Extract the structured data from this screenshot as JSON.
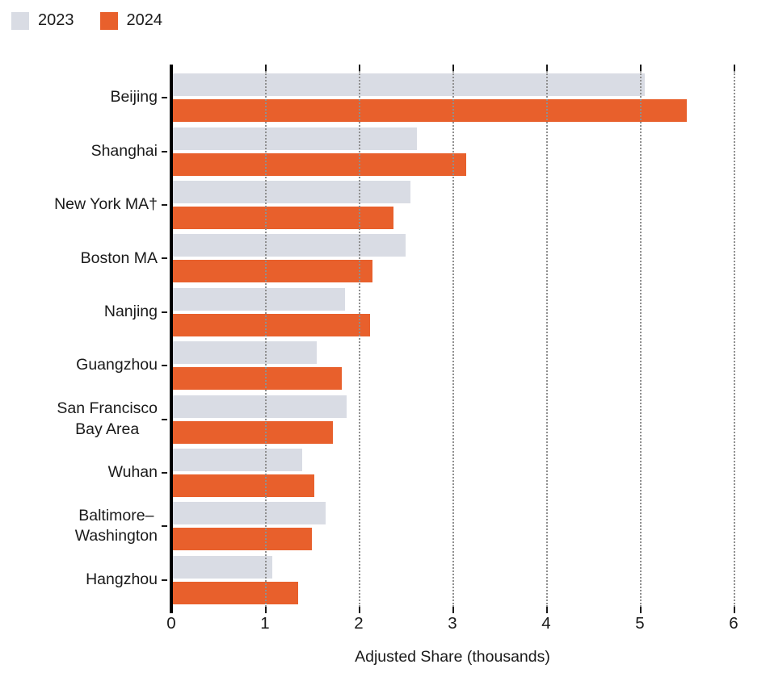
{
  "legend": {
    "items": [
      {
        "label": "2023",
        "color": "#d9dce4"
      },
      {
        "label": "2024",
        "color": "#e8602c"
      }
    ]
  },
  "chart_data": {
    "type": "bar",
    "orientation": "horizontal",
    "title": "",
    "xlabel": "Adjusted Share (thousands)",
    "ylabel": "",
    "xlim": [
      0,
      6
    ],
    "xticks": [
      0,
      1,
      2,
      3,
      4,
      5,
      6
    ],
    "grid": "dotted-vertical",
    "legend_position": "top-left",
    "categories": [
      "Beijing",
      "Shanghai",
      "New York MA†",
      "Boston MA",
      "Nanjing",
      "Guangzhou",
      "San Francisco Bay Area",
      "Wuhan",
      "Baltimore–Washington",
      "Hangzhou"
    ],
    "category_label_lines": [
      [
        "Beijing"
      ],
      [
        "Shanghai"
      ],
      [
        "New York MA†"
      ],
      [
        "Boston MA"
      ],
      [
        "Nanjing"
      ],
      [
        "Guangzhou"
      ],
      [
        "San Francisco",
        "Bay Area"
      ],
      [
        "Wuhan"
      ],
      [
        "Baltimore–",
        "Washington"
      ],
      [
        "Hangzhou"
      ]
    ],
    "series": [
      {
        "name": "2023",
        "color": "#d9dce4",
        "values": [
          5.05,
          2.62,
          2.55,
          2.5,
          1.85,
          1.55,
          1.87,
          1.4,
          1.65,
          1.08
        ]
      },
      {
        "name": "2024",
        "color": "#e8602c",
        "values": [
          5.5,
          3.15,
          2.37,
          2.15,
          2.12,
          1.82,
          1.72,
          1.53,
          1.5,
          1.35
        ]
      }
    ]
  }
}
